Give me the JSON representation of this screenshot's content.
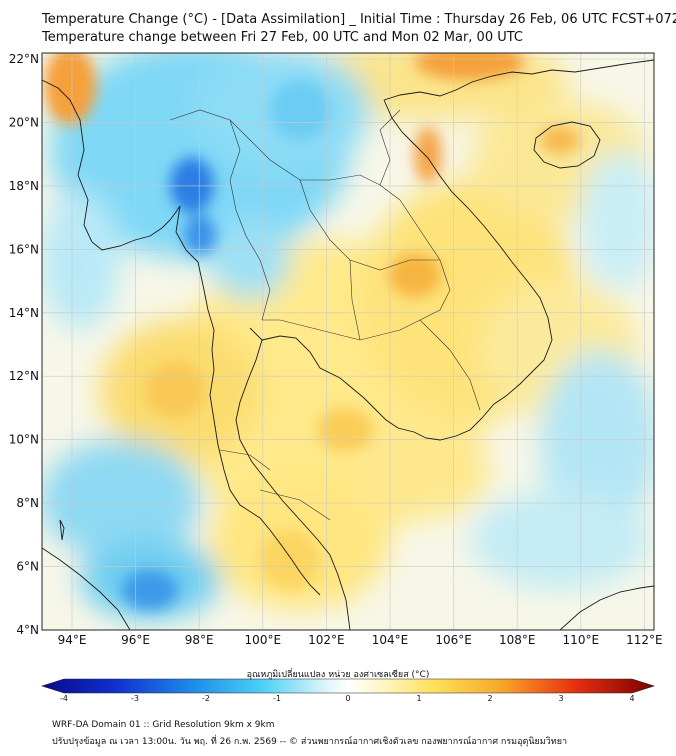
{
  "title": {
    "line1": "Temperature Change (°C) - [Data Assimilation] _ Initial Time : Thursday 26 Feb, 06 UTC FCST+072",
    "line2": "Temperature change between Fri 27 Feb, 00 UTC and Mon 02 Mar, 00 UTC"
  },
  "axes": {
    "lat_ticks": [
      "22°N",
      "20°N",
      "18°N",
      "16°N",
      "14°N",
      "12°N",
      "10°N",
      "8°N",
      "6°N",
      "4°N"
    ],
    "lon_ticks": [
      "94°E",
      "96°E",
      "98°E",
      "100°E",
      "102°E",
      "104°E",
      "106°E",
      "108°E",
      "110°E",
      "112°E"
    ]
  },
  "colorbar": {
    "title": "อุณหภูมิเปลี่ยนแปลง หน่วย องศาเซลเซียส (°C)",
    "ticks": [
      "-4",
      "-3",
      "-2",
      "-1",
      "0",
      "1",
      "2",
      "3",
      "4"
    ],
    "range": [
      -4,
      4
    ]
  },
  "footer": {
    "line1": "WRF-DA Domain 01 :: Grid Resolution 9km x 9km",
    "line2": "ปรับปรุงข้อมูล ณ เวลา 13:00น. วัน พฤ. ที่ 26 ก.พ. 2569 -- © ส่วนพยากรณ์อากาศเชิงตัวเลข กองพยากรณ์อากาศ กรมอุตุนิยมวิทยา"
  },
  "colors": {
    "cold_extreme": "#0a0a8a",
    "cold": "#1e6fe0",
    "cool": "#5fd3f5",
    "neutral": "#f4f8f4",
    "warm": "#ffe36a",
    "hot": "#f5a02a",
    "hot_extreme": "#7a0000"
  }
}
